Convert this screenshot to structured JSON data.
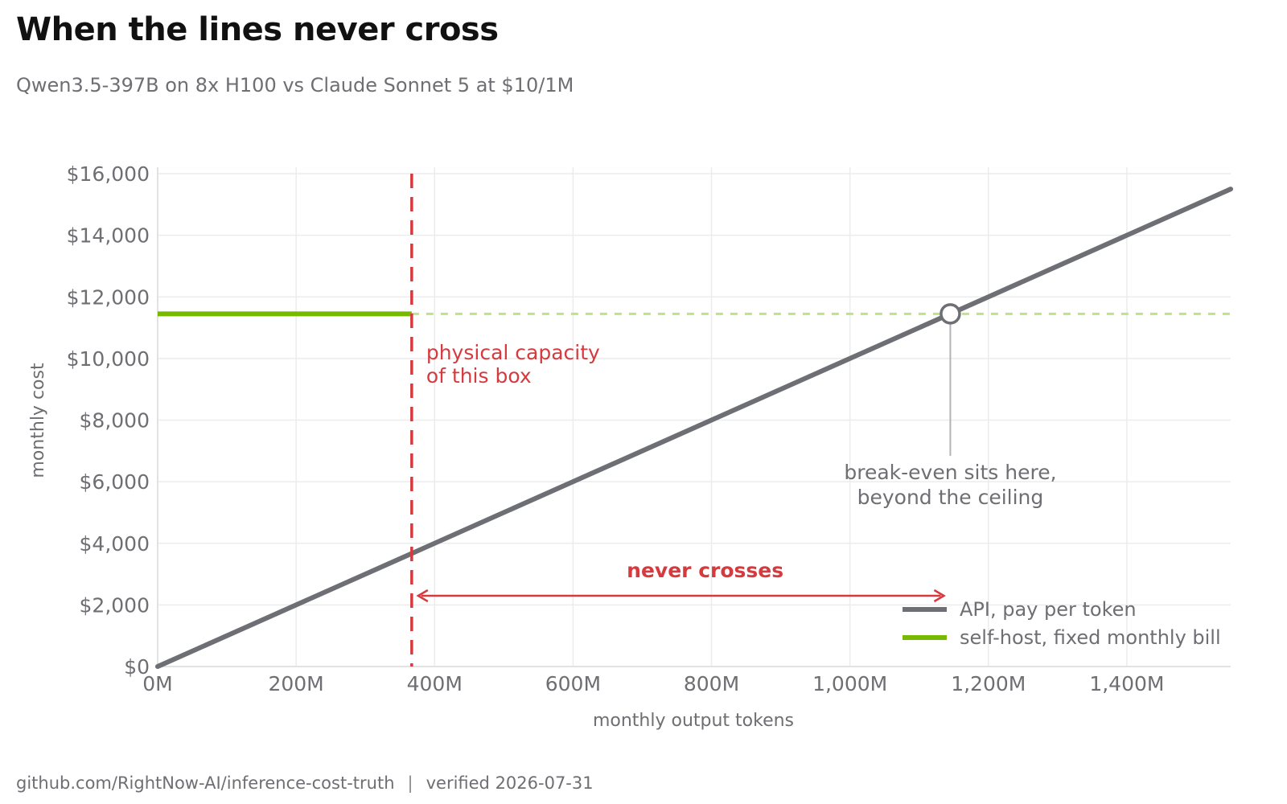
{
  "header": {
    "title": "When the lines never cross",
    "subtitle": "Qwen3.5-397B on 8x H100 vs Claude Sonnet 5 at $10/1M"
  },
  "footer": {
    "source": "github.com/RightNow-AI/inference-cost-truth",
    "separator": "|",
    "verified": "verified 2026-07-31"
  },
  "colors": {
    "api": "#6e6f74",
    "selfhost": "#76b900",
    "selfhost_light": "#bde38a",
    "capacity": "#d63a3f",
    "grid": "#ececec",
    "text": "#6e6e73"
  },
  "chart_data": {
    "type": "line",
    "xlabel": "monthly output tokens",
    "ylabel": "monthly cost",
    "xlim": [
      0,
      1550
    ],
    "ylim": [
      0,
      16000
    ],
    "x_ticks": [
      0,
      200,
      400,
      600,
      800,
      1000,
      1200,
      1400
    ],
    "x_tick_labels": [
      "0M",
      "200M",
      "400M",
      "600M",
      "800M",
      "1,000M",
      "1,200M",
      "1,400M"
    ],
    "y_ticks": [
      0,
      2000,
      4000,
      6000,
      8000,
      10000,
      12000,
      14000,
      16000
    ],
    "y_tick_labels": [
      "$0",
      "$2,000",
      "$4,000",
      "$6,000",
      "$8,000",
      "$10,000",
      "$12,000",
      "$14,000",
      "$16,000"
    ],
    "grid": true,
    "legend_position": "bottom-right",
    "series": [
      {
        "name": "API, pay per token",
        "x": [
          0,
          1550
        ],
        "y": [
          0,
          15500
        ]
      },
      {
        "name": "self-host, fixed monthly bill",
        "x": [
          0,
          367
        ],
        "y": [
          11450,
          11450
        ],
        "extension": {
          "x": [
            367,
            1550
          ],
          "y": [
            11450,
            11450
          ]
        }
      }
    ],
    "capacity_x": 367,
    "break_even": {
      "x": 1145,
      "y": 11450
    },
    "annotations": {
      "capacity": [
        "physical capacity",
        "of this box"
      ],
      "break_even": [
        "break-even sits here,",
        "beyond the ceiling"
      ],
      "gap": "never crosses"
    },
    "gap_arrow": {
      "from": 367,
      "to": 1145
    }
  }
}
